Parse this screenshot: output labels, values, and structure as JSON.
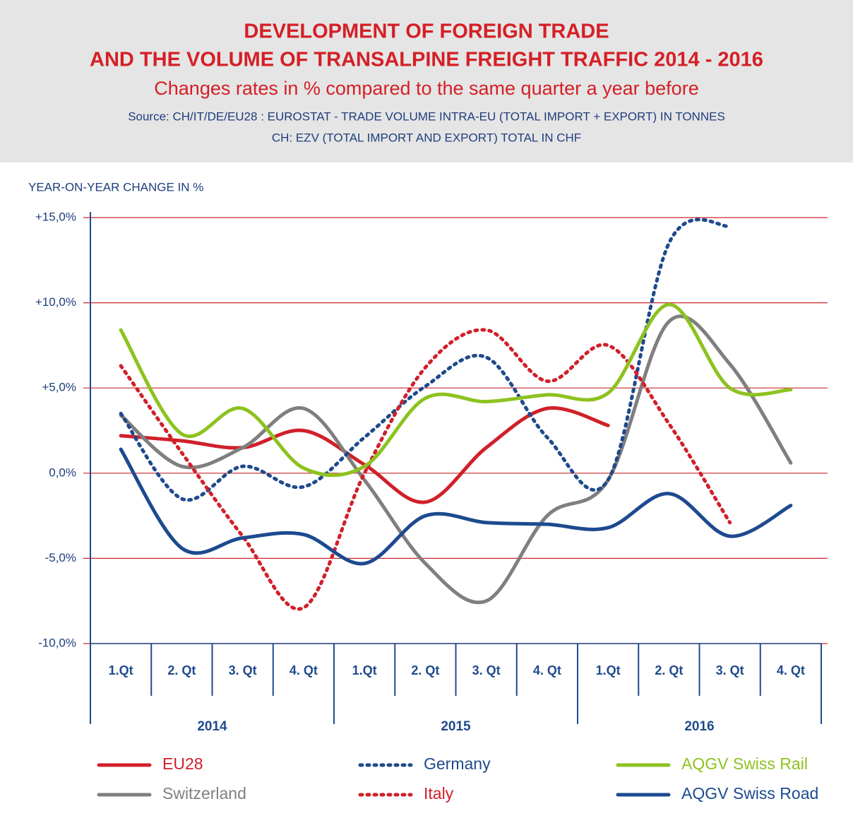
{
  "chart_data": {
    "type": "line",
    "title": [
      "DEVELOPMENT OF FOREIGN TRADE",
      "AND THE VOLUME OF TRANSALPINE FREIGHT TRAFFIC 2014 - 2016"
    ],
    "subtitle": "Changes rates in % compared to the same quarter a year before",
    "source": [
      "Source: CH/IT/DE/EU28 : EUROSTAT - TRADE VOLUME INTRA-EU (TOTAL IMPORT + EXPORT) IN TONNES",
      "CH: EZV (TOTAL IMPORT AND EXPORT) TOTAL IN CHF"
    ],
    "y_label": "YEAR-ON-YEAR CHANGE IN %",
    "categories": [
      "1.Qt",
      "2. Qt",
      "3. Qt",
      "4. Qt",
      "1.Qt",
      "2. Qt",
      "3. Qt",
      "4. Qt",
      "1.Qt",
      "2. Qt",
      "3. Qt",
      "4. Qt"
    ],
    "groups": [
      "2014",
      "2015",
      "2016"
    ],
    "ylim": [
      -10,
      15
    ],
    "yticks": [
      {
        "value": -10,
        "label": "-10,0%"
      },
      {
        "value": -5,
        "label": "-5,0%"
      },
      {
        "value": 0,
        "label": "0,0%"
      },
      {
        "value": 5,
        "label": "+5,0%"
      },
      {
        "value": 10,
        "label": "+10,0%"
      },
      {
        "value": 15,
        "label": "+15,0%"
      }
    ],
    "grid": true,
    "grid_color": "#c8282e",
    "series": [
      {
        "name": "EU28",
        "color": "#d0202a",
        "style": "solid",
        "values": [
          2.2,
          1.9,
          1.5,
          2.5,
          0.5,
          -1.7,
          1.5,
          3.8,
          2.8,
          null,
          null,
          null
        ]
      },
      {
        "name": "Switzerland",
        "color": "#7f7f7f",
        "style": "solid",
        "values": [
          3.4,
          0.4,
          1.5,
          3.8,
          -0.4,
          -5.3,
          -7.5,
          -2.5,
          -0.4,
          8.9,
          6.4,
          0.6
        ]
      },
      {
        "name": "Germany",
        "color": "#1f4a8c",
        "style": "dotted",
        "values": [
          3.5,
          -1.5,
          0.4,
          -0.8,
          2.1,
          5.1,
          6.8,
          2.1,
          -0.4,
          13.5,
          14.5,
          null
        ]
      },
      {
        "name": "Italy",
        "color": "#d0202a",
        "style": "dotted",
        "values": [
          6.3,
          1.2,
          -3.7,
          -7.9,
          0,
          6.2,
          8.4,
          5.4,
          7.5,
          2.9,
          -2.9,
          null
        ]
      },
      {
        "name": "AQGV Swiss Rail",
        "color": "#8dc21f",
        "style": "solid",
        "values": [
          8.4,
          2.3,
          3.8,
          0.3,
          0.4,
          4.4,
          4.2,
          4.6,
          4.7,
          9.9,
          5.0,
          4.9
        ]
      },
      {
        "name": "AQGV Swiss Road",
        "color": "#1d4a8f",
        "style": "solid",
        "values": [
          1.4,
          -4.4,
          -3.8,
          -3.6,
          -5.3,
          -2.5,
          -2.9,
          -3.0,
          -3.2,
          -1.2,
          -3.7,
          -1.9
        ]
      }
    ]
  }
}
